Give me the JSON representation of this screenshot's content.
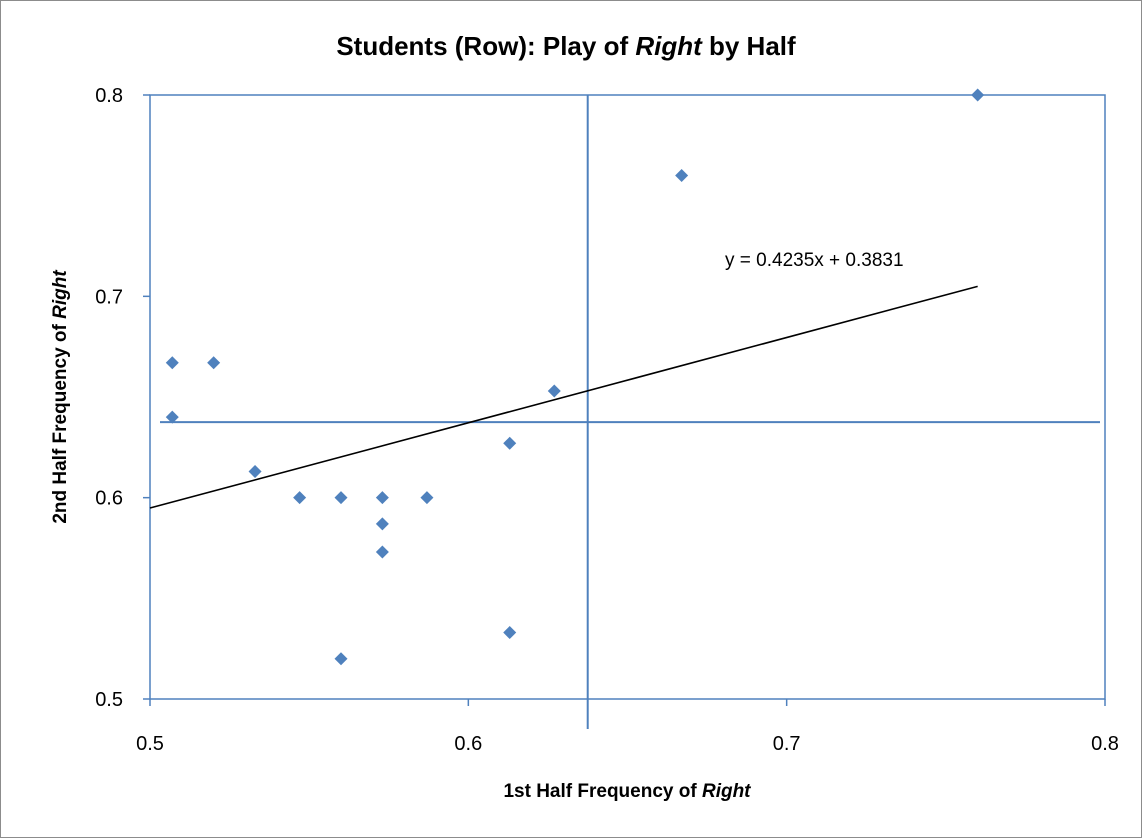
{
  "chart_data": {
    "type": "scatter",
    "title": {
      "pre": "Students (Row): Play of ",
      "em": "Right",
      "post": " by Half"
    },
    "xlabel": {
      "pre": "1st Half Frequency of ",
      "em": "Right"
    },
    "ylabel": {
      "pre": "2nd Half Frequency of ",
      "em": "Right"
    },
    "xlim": [
      0.5,
      0.8
    ],
    "ylim": [
      0.5,
      0.8
    ],
    "x_ticks": [
      "0.5",
      "0.6",
      "0.7",
      "0.8"
    ],
    "y_ticks": [
      "0.5",
      "0.6",
      "0.7",
      "0.8"
    ],
    "grid": false,
    "points": [
      {
        "x": 0.507,
        "y": 0.667
      },
      {
        "x": 0.507,
        "y": 0.64
      },
      {
        "x": 0.52,
        "y": 0.667
      },
      {
        "x": 0.533,
        "y": 0.613
      },
      {
        "x": 0.547,
        "y": 0.6
      },
      {
        "x": 0.56,
        "y": 0.6
      },
      {
        "x": 0.56,
        "y": 0.52
      },
      {
        "x": 0.573,
        "y": 0.6
      },
      {
        "x": 0.573,
        "y": 0.587
      },
      {
        "x": 0.573,
        "y": 0.573
      },
      {
        "x": 0.587,
        "y": 0.6
      },
      {
        "x": 0.613,
        "y": 0.627
      },
      {
        "x": 0.613,
        "y": 0.533
      },
      {
        "x": 0.627,
        "y": 0.653
      },
      {
        "x": 0.667,
        "y": 0.76
      },
      {
        "x": 0.76,
        "y": 0.8
      }
    ],
    "trendline": {
      "slope": 0.4235,
      "intercept": 0.3831,
      "x_range": [
        0.5,
        0.76
      ],
      "label": "y = 0.4235x + 0.3831"
    },
    "mean_lines": {
      "x": 0.6375,
      "y": 0.6375
    },
    "colors": {
      "marker": "#4f81bd",
      "frame": "#4f81bd",
      "mean_line": "#4f81bd",
      "trendline": "#000000"
    }
  }
}
